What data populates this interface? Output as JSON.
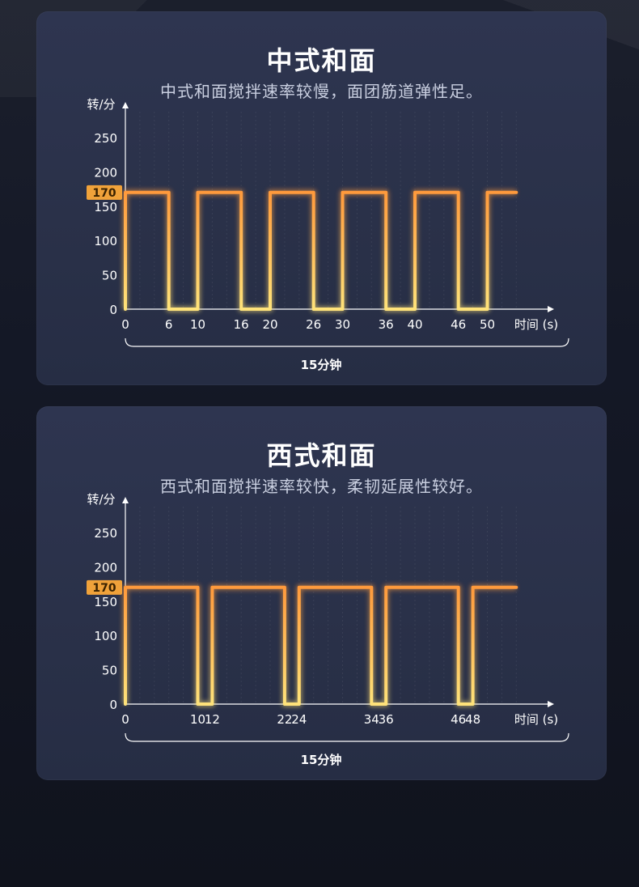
{
  "colors": {
    "line_top": "#ff9a3c",
    "line_bottom": "#ffe37a",
    "accent_tag": "#f0a23a",
    "axis": "#ffffff",
    "text": "#ffffff"
  },
  "charts": [
    {
      "title": "中式和面",
      "subtitle": "中式和面搅拌速率较慢，面团筋道弹性足。",
      "ylabel": "转/分",
      "xlabel": "时间 (s)",
      "highlight_label": "170",
      "brace_label": "15分钟"
    },
    {
      "title": "西式和面",
      "subtitle": "西式和面搅拌速率较快，柔韧延展性较好。",
      "ylabel": "转/分",
      "xlabel": "时间 (s)",
      "highlight_label": "170",
      "brace_label": "15分钟"
    }
  ],
  "chart_data": [
    {
      "type": "line",
      "title": "中式和面",
      "xlabel": "时间 (s)",
      "ylabel": "转/分",
      "ylim": [
        0,
        250
      ],
      "yticks": [
        0,
        50,
        100,
        150,
        200,
        250
      ],
      "xticks": [
        0,
        6,
        10,
        16,
        20,
        26,
        30,
        36,
        40,
        46,
        50
      ],
      "highlight_y": 170,
      "series": [
        {
          "x": [
            0,
            0,
            6,
            6,
            10,
            10,
            16,
            16,
            20,
            20,
            26,
            26,
            30,
            30,
            36,
            36,
            40,
            40,
            46,
            46,
            50,
            50,
            54
          ],
          "y": [
            0,
            170,
            170,
            0,
            0,
            170,
            170,
            0,
            0,
            170,
            170,
            0,
            0,
            170,
            170,
            0,
            0,
            170,
            170,
            0,
            0,
            170,
            170
          ]
        }
      ]
    },
    {
      "type": "line",
      "title": "西式和面",
      "xlabel": "时间 (s)",
      "ylabel": "转/分",
      "ylim": [
        0,
        250
      ],
      "yticks": [
        0,
        50,
        100,
        150,
        200,
        250
      ],
      "xticks": [
        0,
        10,
        12,
        22,
        24,
        34,
        36,
        46,
        48
      ],
      "highlight_y": 170,
      "series": [
        {
          "x": [
            0,
            0,
            10,
            10,
            12,
            12,
            22,
            22,
            24,
            24,
            34,
            34,
            36,
            36,
            46,
            46,
            48,
            48,
            54
          ],
          "y": [
            0,
            170,
            170,
            0,
            0,
            170,
            170,
            0,
            0,
            170,
            170,
            0,
            0,
            170,
            170,
            0,
            0,
            170,
            170
          ]
        }
      ]
    }
  ]
}
